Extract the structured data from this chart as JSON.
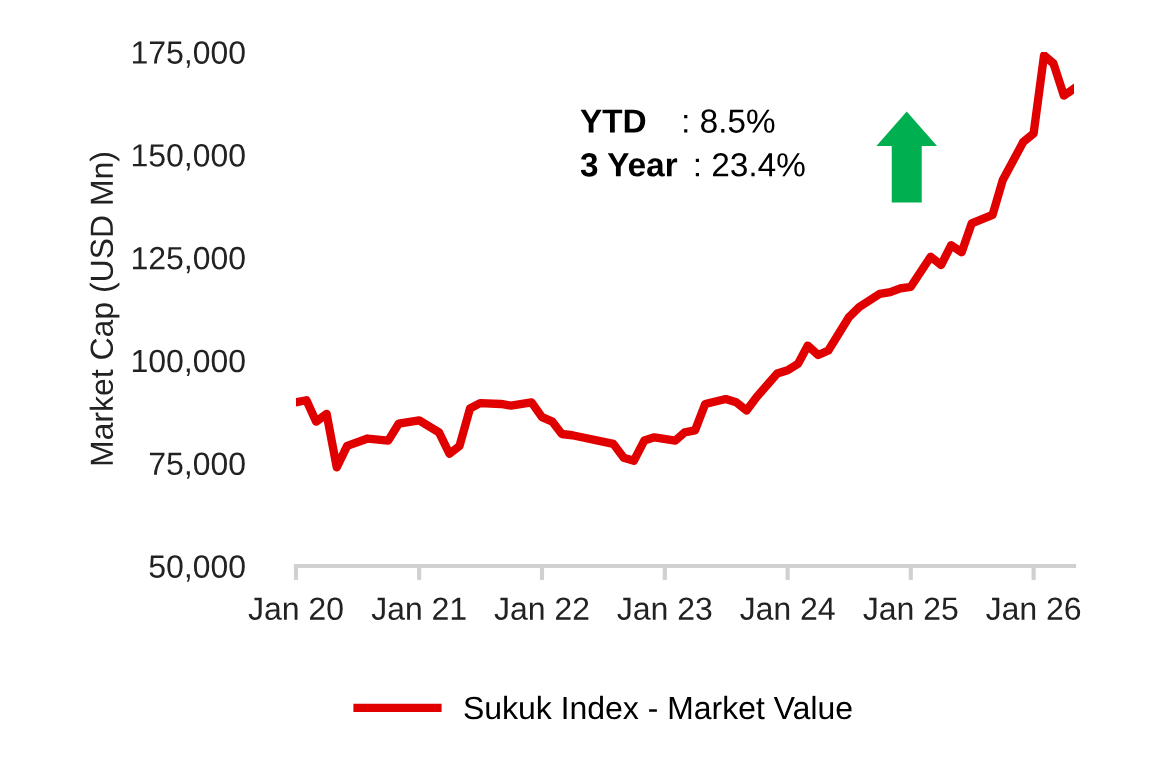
{
  "chart_data": {
    "type": "line",
    "ylabel": "Market Cap (USD Mn)",
    "x": [
      "2020-01",
      "2020-02",
      "2020-03",
      "2020-04",
      "2020-05",
      "2020-06",
      "2020-08",
      "2020-10",
      "2020-11",
      "2021-01",
      "2021-03",
      "2021-04",
      "2021-05",
      "2021-06",
      "2021-07",
      "2021-09",
      "2021-10",
      "2021-12",
      "2022-01",
      "2022-02",
      "2022-03",
      "2022-04",
      "2022-08",
      "2022-09",
      "2022-10",
      "2022-11",
      "2022-12",
      "2023-02",
      "2023-03",
      "2023-04",
      "2023-05",
      "2023-07",
      "2023-08",
      "2023-09",
      "2023-10",
      "2023-12",
      "2024-01",
      "2024-02",
      "2024-03",
      "2024-04",
      "2024-05",
      "2024-07",
      "2024-08",
      "2024-10",
      "2024-11",
      "2024-12",
      "2025-01",
      "2025-03",
      "2025-04",
      "2025-05",
      "2025-06",
      "2025-07",
      "2025-09",
      "2025-10",
      "2025-12",
      "2026-01",
      "2026-02",
      "2026-03",
      "2026-04",
      "2026-05"
    ],
    "series": [
      {
        "name": "Sukuk Index - Market Value",
        "color": "#e00000",
        "values": [
          89800,
          90300,
          85100,
          87000,
          74000,
          79200,
          81000,
          80500,
          84600,
          85400,
          82500,
          77300,
          79200,
          88300,
          89600,
          89400,
          89000,
          89800,
          86200,
          85100,
          82100,
          81800,
          79700,
          76300,
          75600,
          80500,
          81300,
          80500,
          82500,
          83000,
          89400,
          90600,
          89800,
          87800,
          91100,
          96800,
          97600,
          99200,
          103600,
          101300,
          102400,
          110500,
          113000,
          116200,
          116600,
          117500,
          117900,
          125200,
          123200,
          128000,
          126300,
          133300,
          135400,
          143800,
          153100,
          155200,
          174200,
          172200,
          164400,
          166100
        ]
      }
    ],
    "xlim": [
      "2020-01",
      "2026-05"
    ],
    "xticks": [
      {
        "value": "2020-01",
        "label": "Jan 20"
      },
      {
        "value": "2021-01",
        "label": "Jan 21"
      },
      {
        "value": "2022-01",
        "label": "Jan 22"
      },
      {
        "value": "2023-01",
        "label": "Jan 23"
      },
      {
        "value": "2024-01",
        "label": "Jan 24"
      },
      {
        "value": "2025-01",
        "label": "Jan 25"
      },
      {
        "value": "2026-01",
        "label": "Jan 26"
      }
    ],
    "ylim": [
      50000,
      175000
    ],
    "yticks": [
      {
        "value": 50000,
        "label": "50,000"
      },
      {
        "value": 75000,
        "label": "75,000"
      },
      {
        "value": 100000,
        "label": "100,000"
      },
      {
        "value": 125000,
        "label": "125,000"
      },
      {
        "value": 150000,
        "label": "150,000"
      },
      {
        "value": 175000,
        "label": "175,000"
      }
    ],
    "annotations": [
      "YTD",
      ": 8.5%",
      "3 Year",
      ": 23.4%"
    ],
    "legend": "bottom",
    "grid": false,
    "marker": "none",
    "line_style": "solid"
  }
}
